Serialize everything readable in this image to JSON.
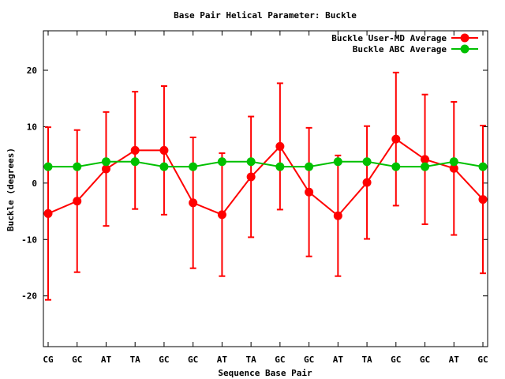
{
  "chart_data": {
    "type": "line",
    "title": "Base Pair Helical Parameter: Buckle",
    "xlabel": "Sequence Base Pair",
    "ylabel": "Buckle (degrees)",
    "ylim": [
      -29,
      27
    ],
    "yticks": [
      -20,
      -10,
      0,
      10,
      20
    ],
    "grid": false,
    "legend_position": "top-right",
    "categories": [
      "CG",
      "GC",
      "AT",
      "TA",
      "GC",
      "GC",
      "AT",
      "TA",
      "GC",
      "GC",
      "AT",
      "TA",
      "GC",
      "GC",
      "AT",
      "GC"
    ],
    "series": [
      {
        "name": "Buckle User-MD Average",
        "color": "#ff0000",
        "values": [
          -5.4,
          -3.2,
          2.5,
          5.8,
          5.8,
          -3.5,
          -5.6,
          1.1,
          6.5,
          -1.6,
          -5.8,
          0.1,
          7.8,
          4.2,
          2.6,
          -2.9
        ],
        "error": [
          15.3,
          12.6,
          10.1,
          10.4,
          11.4,
          11.6,
          10.9,
          10.7,
          11.2,
          11.4,
          10.7,
          10.0,
          11.8,
          11.5,
          11.8,
          13.1
        ]
      },
      {
        "name": "Buckle ABC Average",
        "color": "#00c000",
        "values": [
          2.9,
          2.9,
          3.8,
          3.8,
          2.9,
          2.9,
          3.8,
          3.8,
          2.9,
          2.9,
          3.8,
          3.8,
          2.9,
          2.9,
          3.8,
          2.9
        ]
      }
    ]
  }
}
